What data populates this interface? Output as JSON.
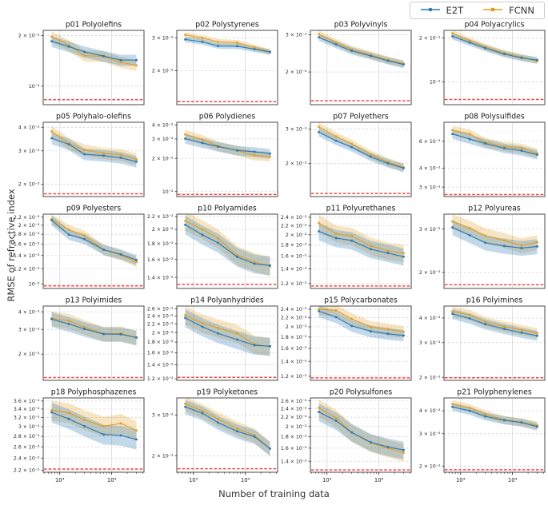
{
  "chart_data": {
    "type": "line",
    "xscale": "log",
    "yscale": "log",
    "xlabel": "Number of training data",
    "ylabel": "RMSE of refractive index",
    "x": [
      700,
      1500,
      3000,
      7000,
      15000,
      30000
    ],
    "xlim": [
      480,
      42000
    ],
    "xticks": [
      [
        1000,
        "10³"
      ],
      [
        10000,
        "10⁴"
      ]
    ],
    "legend_position": "top-right",
    "grid": true,
    "baseline_color": "#f94040",
    "band_opacity": 0.35,
    "series": [
      {
        "name": "E2T",
        "color": "#2878b4",
        "marker": "circle"
      },
      {
        "name": "FCNN",
        "color": "#df9f26",
        "marker": "square"
      }
    ],
    "panels": [
      {
        "title": "p01 Polyolefins",
        "ylim": [
          0.00775,
          0.0215
        ],
        "yticks": [
          [
            0.02,
            "2 × 10⁻²"
          ],
          [
            0.01,
            "10⁻²"
          ]
        ],
        "minor": [
          0.009
        ],
        "baseline": 0.0083,
        "band": 0.075,
        "E2T": [
          0.0185,
          0.0172,
          0.016,
          0.0151,
          0.0143,
          0.0143
        ],
        "FCNN": [
          0.0197,
          0.0175,
          0.0152,
          0.015,
          0.0139,
          0.0133
        ]
      },
      {
        "title": "p02 Polystyrenes",
        "ylim": [
          0.0131,
          0.033
        ],
        "yticks": [
          [
            0.03,
            "3 × 10⁻²"
          ],
          [
            0.02,
            "2 × 10⁻²"
          ]
        ],
        "minor": [],
        "baseline": 0.0136,
        "band": 0.035,
        "E2T": [
          0.0295,
          0.0286,
          0.0272,
          0.0271,
          0.0261,
          0.0252
        ],
        "FCNN": [
          0.0312,
          0.03,
          0.0286,
          0.0283,
          0.0267,
          0.0253
        ]
      },
      {
        "title": "p03 Polyvinyls",
        "ylim": [
          0.014,
          0.0315
        ],
        "yticks": [
          [
            0.03,
            "3 × 10⁻²"
          ],
          [
            0.02,
            "2 × 10⁻²"
          ]
        ],
        "minor": [],
        "baseline": 0.0146,
        "band": 0.04,
        "E2T": [
          0.0292,
          0.027,
          0.0252,
          0.0238,
          0.0226,
          0.0217
        ],
        "FCNN": [
          0.0302,
          0.0276,
          0.0256,
          0.0241,
          0.0228,
          0.0219
        ]
      },
      {
        "title": "p04 Polyacrylics",
        "ylim": [
          0.007,
          0.0225
        ],
        "yticks": [
          [
            0.02,
            "2 × 10⁻²"
          ],
          [
            0.01,
            "10⁻²"
          ]
        ],
        "minor": [
          0.009,
          0.008
        ],
        "baseline": 0.0076,
        "band": 0.05,
        "E2T": [
          0.0205,
          0.0186,
          0.017,
          0.0155,
          0.0146,
          0.0141
        ],
        "FCNN": [
          0.0215,
          0.0191,
          0.0174,
          0.0157,
          0.0148,
          0.0139
        ]
      },
      {
        "title": "p05 Polyhalo-olefins",
        "ylim": [
          0.0172,
          0.0425
        ],
        "yticks": [
          [
            0.04,
            "4 × 10⁻²"
          ],
          [
            0.03,
            "3 × 10⁻²"
          ],
          [
            0.02,
            "2 × 10⁻²"
          ]
        ],
        "minor": [],
        "baseline": 0.0178,
        "band": 0.07,
        "E2T": [
          0.035,
          0.0325,
          0.0288,
          0.0283,
          0.0276,
          0.0263
        ],
        "FCNN": [
          0.038,
          0.0328,
          0.0303,
          0.0291,
          0.0286,
          0.0271
        ]
      },
      {
        "title": "p06 Polydienes",
        "ylim": [
          0.009,
          0.0425
        ],
        "yticks": [
          [
            0.04,
            "4 × 10⁻²"
          ],
          [
            0.03,
            "3 × 10⁻²"
          ],
          [
            0.02,
            "2 × 10⁻²"
          ],
          [
            0.01,
            "10⁻²"
          ]
        ],
        "minor": [],
        "baseline": 0.0094,
        "band": 0.1,
        "E2T": [
          0.0302,
          0.0276,
          0.0256,
          0.0236,
          0.0229,
          0.0221
        ],
        "FCNN": [
          0.033,
          0.0295,
          0.0259,
          0.0235,
          0.0213,
          0.0208
        ]
      },
      {
        "title": "p07 Polyethers",
        "ylim": [
          0.0135,
          0.0325
        ],
        "yticks": [
          [
            0.03,
            "3 × 10⁻²"
          ],
          [
            0.02,
            "2 × 10⁻²"
          ]
        ],
        "minor": [],
        "baseline": 0.014,
        "band": 0.05,
        "E2T": [
          0.0289,
          0.0261,
          0.0242,
          0.0216,
          0.02,
          0.0189
        ],
        "FCNN": [
          0.0308,
          0.0275,
          0.0252,
          0.0222,
          0.0203,
          0.0191
        ]
      },
      {
        "title": "p08 Polysulfides",
        "ylim": [
          0.026,
          0.08
        ],
        "yticks": [
          [
            0.06,
            "6 × 10⁻²"
          ],
          [
            0.04,
            "4 × 10⁻²"
          ],
          [
            0.03,
            "3 × 10⁻²"
          ]
        ],
        "minor": [
          0.07,
          0.05
        ],
        "baseline": 0.0268,
        "band": 0.07,
        "E2T": [
          0.067,
          0.062,
          0.058,
          0.054,
          0.052,
          0.049
        ],
        "FCNN": [
          0.071,
          0.067,
          0.059,
          0.0555,
          0.054,
          0.05
        ]
      },
      {
        "title": "p09 Polyesters",
        "ylim": [
          0.0095,
          0.0228
        ],
        "yticks": [
          [
            0.022,
            "2.2 × 10⁻²"
          ],
          [
            0.02,
            "2 × 10⁻²"
          ],
          [
            0.018,
            "1.8 × 10⁻²"
          ],
          [
            0.016,
            "1.6 × 10⁻²"
          ],
          [
            0.014,
            "1.4 × 10⁻²"
          ],
          [
            0.012,
            "1.2 × 10⁻²"
          ],
          [
            0.01,
            "10⁻²"
          ]
        ],
        "minor": [],
        "baseline": 0.0098,
        "band": 0.06,
        "E2T": [
          0.0212,
          0.0179,
          0.017,
          0.015,
          0.0142,
          0.0133
        ],
        "FCNN": [
          0.0215,
          0.019,
          0.0177,
          0.015,
          0.0141,
          0.013
        ]
      },
      {
        "title": "p10 Polyamides",
        "ylim": [
          0.0129,
          0.0224
        ],
        "yticks": [
          [
            0.022,
            "2.2 × 10⁻²"
          ],
          [
            0.02,
            "2 × 10⁻²"
          ],
          [
            0.018,
            "1.8 × 10⁻²"
          ],
          [
            0.016,
            "1.6 × 10⁻²"
          ],
          [
            0.014,
            "1.4 × 10⁻²"
          ]
        ],
        "minor": [],
        "baseline": 0.0133,
        "band": 0.07,
        "E2T": [
          0.0207,
          0.0192,
          0.0181,
          0.0163,
          0.0155,
          0.0153
        ],
        "FCNN": [
          0.0213,
          0.02,
          0.0187,
          0.0165,
          0.0157,
          0.0152
        ]
      },
      {
        "title": "p11 Polyurethanes",
        "ylim": [
          0.0114,
          0.0248
        ],
        "yticks": [
          [
            0.024,
            "2.4 × 10⁻²"
          ],
          [
            0.022,
            "2.2 × 10⁻²"
          ],
          [
            0.02,
            "2 × 10⁻²"
          ],
          [
            0.018,
            "1.8 × 10⁻²"
          ],
          [
            0.016,
            "1.6 × 10⁻²"
          ],
          [
            0.014,
            "1.4 × 10⁻²"
          ],
          [
            0.012,
            "1.2 × 10⁻²"
          ]
        ],
        "minor": [],
        "baseline": 0.0117,
        "band": 0.09,
        "E2T": [
          0.0207,
          0.0193,
          0.0188,
          0.0172,
          0.0165,
          0.0159
        ],
        "FCNN": [
          0.0226,
          0.0202,
          0.0197,
          0.0178,
          0.0169,
          0.0165
        ]
      },
      {
        "title": "p12 Polyureas",
        "ylim": [
          0.0172,
          0.0345
        ],
        "yticks": [
          [
            0.03,
            "3 × 10⁻²"
          ],
          [
            0.02,
            "2 × 10⁻²"
          ]
        ],
        "minor": [],
        "baseline": 0.0178,
        "band": 0.07,
        "E2T": [
          0.0305,
          0.0283,
          0.0264,
          0.0256,
          0.0251,
          0.0255
        ],
        "FCNN": [
          0.0322,
          0.0303,
          0.0282,
          0.027,
          0.0257,
          0.0265
        ]
      },
      {
        "title": "p13 Polyimides",
        "ylim": [
          0.013,
          0.044
        ],
        "yticks": [
          [
            0.04,
            "4 × 10⁻²"
          ],
          [
            0.03,
            "3 × 10⁻²"
          ],
          [
            0.02,
            "2 × 10⁻²"
          ]
        ],
        "minor": [],
        "baseline": 0.0136,
        "band": 0.12,
        "E2T": [
          0.0355,
          0.0328,
          0.0302,
          0.0278,
          0.0277,
          0.0262
        ],
        "FCNN": [
          0.036,
          0.0345,
          0.0312,
          0.0279,
          0.0281,
          0.0263
        ]
      },
      {
        "title": "p14 Polyanhydrides",
        "ylim": [
          0.0118,
          0.0268
        ],
        "yticks": [
          [
            0.026,
            "2.6 × 10⁻²"
          ],
          [
            0.024,
            "2.4 × 10⁻²"
          ],
          [
            0.022,
            "2.2 × 10⁻²"
          ],
          [
            0.02,
            "2 × 10⁻²"
          ],
          [
            0.018,
            "1.8 × 10⁻²"
          ],
          [
            0.016,
            "1.6 × 10⁻²"
          ],
          [
            0.014,
            "1.4 × 10⁻²"
          ],
          [
            0.012,
            "1.2 × 10⁻²"
          ]
        ],
        "minor": [],
        "baseline": 0.0122,
        "band": 0.1,
        "E2T": [
          0.0235,
          0.0213,
          0.0198,
          0.0185,
          0.0174,
          0.0172
        ],
        "FCNN": [
          0.0242,
          0.0222,
          0.021,
          0.0198,
          0.0176,
          0.0171
        ]
      },
      {
        "title": "p15 Polycarbonates",
        "ylim": [
          0.0115,
          0.0248
        ],
        "yticks": [
          [
            0.024,
            "2.4 × 10⁻²"
          ],
          [
            0.022,
            "2.2 × 10⁻²"
          ],
          [
            0.02,
            "2 × 10⁻²"
          ],
          [
            0.018,
            "1.8 × 10⁻²"
          ],
          [
            0.016,
            "1.6 × 10⁻²"
          ],
          [
            0.014,
            "1.4 × 10⁻²"
          ],
          [
            0.012,
            "1.2 × 10⁻²"
          ]
        ],
        "minor": [],
        "baseline": 0.0118,
        "band": 0.06,
        "E2T": [
          0.0235,
          0.0221,
          0.0202,
          0.0191,
          0.0186,
          0.0183
        ],
        "FCNN": [
          0.024,
          0.0237,
          0.0217,
          0.02,
          0.0195,
          0.019
        ]
      },
      {
        "title": "p16 Polyimines",
        "ylim": [
          0.0193,
          0.046
        ],
        "yticks": [
          [
            0.04,
            "4 × 10⁻²"
          ],
          [
            0.03,
            "3 × 10⁻²"
          ],
          [
            0.02,
            "2 × 10⁻²"
          ]
        ],
        "minor": [],
        "baseline": 0.0199,
        "band": 0.06,
        "E2T": [
          0.042,
          0.0398,
          0.0372,
          0.0352,
          0.0337,
          0.0325
        ],
        "FCNN": [
          0.0432,
          0.0415,
          0.0382,
          0.0362,
          0.0348,
          0.0335
        ]
      },
      {
        "title": "p18 Polyphosphazenes",
        "ylim": [
          0.0217,
          0.0368
        ],
        "yticks": [
          [
            0.036,
            "3.6 × 10⁻²"
          ],
          [
            0.034,
            "3.4 × 10⁻²"
          ],
          [
            0.032,
            "3.2 × 10⁻²"
          ],
          [
            0.03,
            "3 × 10⁻²"
          ],
          [
            0.028,
            "2.8 × 10⁻²"
          ],
          [
            0.026,
            "2.6 × 10⁻²"
          ],
          [
            0.024,
            "2.4 × 10⁻²"
          ],
          [
            0.022,
            "2.2 × 10⁻²"
          ]
        ],
        "minor": [],
        "baseline": 0.0222,
        "band": 0.07,
        "E2T": [
          0.0332,
          0.0317,
          0.0301,
          0.0284,
          0.0282,
          0.0274
        ],
        "FCNN": [
          0.0337,
          0.0331,
          0.0315,
          0.0301,
          0.0307,
          0.0292
        ]
      },
      {
        "title": "p19 Polyketones",
        "ylim": [
          0.017,
          0.0355
        ],
        "yticks": [
          [
            0.03,
            "3 × 10⁻²"
          ],
          [
            0.02,
            "2 × 10⁻²"
          ]
        ],
        "minor": [],
        "baseline": 0.0176,
        "band": 0.07,
        "E2T": [
          0.0325,
          0.0305,
          0.0278,
          0.0255,
          0.0242,
          0.0215
        ],
        "FCNN": [
          0.0335,
          0.0312,
          0.0288,
          0.0262,
          0.0245,
          0.0215
        ]
      },
      {
        "title": "p20 Polysulfones",
        "ylim": [
          0.0125,
          0.0268
        ],
        "yticks": [
          [
            0.026,
            "2.6 × 10⁻²"
          ],
          [
            0.024,
            "2.4 × 10⁻²"
          ],
          [
            0.022,
            "2.2 × 10⁻²"
          ],
          [
            0.02,
            "2 × 10⁻²"
          ],
          [
            0.018,
            "1.8 × 10⁻²"
          ],
          [
            0.016,
            "1.6 × 10⁻²"
          ],
          [
            0.014,
            "1.4 × 10⁻²"
          ]
        ],
        "minor": [],
        "baseline": 0.0128,
        "band": 0.09,
        "E2T": [
          0.0232,
          0.0212,
          0.0188,
          0.017,
          0.0162,
          0.0157
        ],
        "FCNN": [
          0.0242,
          0.0218,
          0.0188,
          0.0169,
          0.016,
          0.0153
        ]
      },
      {
        "title": "p21 Polyphenylenes",
        "ylim": [
          0.0185,
          0.047
        ],
        "yticks": [
          [
            0.04,
            "4 × 10⁻²"
          ],
          [
            0.03,
            "3 × 10⁻²"
          ],
          [
            0.02,
            "2 × 10⁻²"
          ]
        ],
        "minor": [],
        "baseline": 0.0191,
        "band": 0.05,
        "E2T": [
          0.042,
          0.04,
          0.0373,
          0.0355,
          0.0345,
          0.0328
        ],
        "FCNN": [
          0.0435,
          0.0415,
          0.0383,
          0.0357,
          0.0347,
          0.0333
        ]
      }
    ]
  }
}
